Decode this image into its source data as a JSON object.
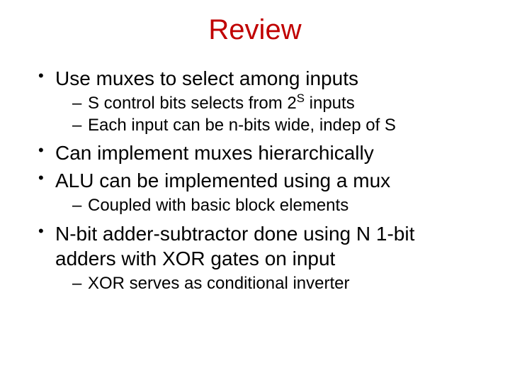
{
  "title": {
    "text": "Review",
    "color": "#c00000",
    "fontsize": 40
  },
  "body": {
    "fontsize_l1": 28,
    "fontsize_l2": 24,
    "text_color": "#000000"
  },
  "bullets": [
    {
      "text": "Use muxes to select among inputs",
      "sub": [
        {
          "pre": "S control bits selects from 2",
          "sup": "S",
          "post": " inputs"
        },
        {
          "text": "Each input can be n-bits wide, indep of S"
        }
      ]
    },
    {
      "text": "Can implement muxes hierarchically",
      "sub": []
    },
    {
      "text": "ALU can be implemented using a mux",
      "sub": [
        {
          "text": "Coupled with basic block elements"
        }
      ]
    },
    {
      "text": "N-bit adder-subtractor done using N 1-bit adders with XOR gates on input",
      "sub": [
        {
          "text": "XOR serves as conditional inverter"
        }
      ]
    }
  ]
}
